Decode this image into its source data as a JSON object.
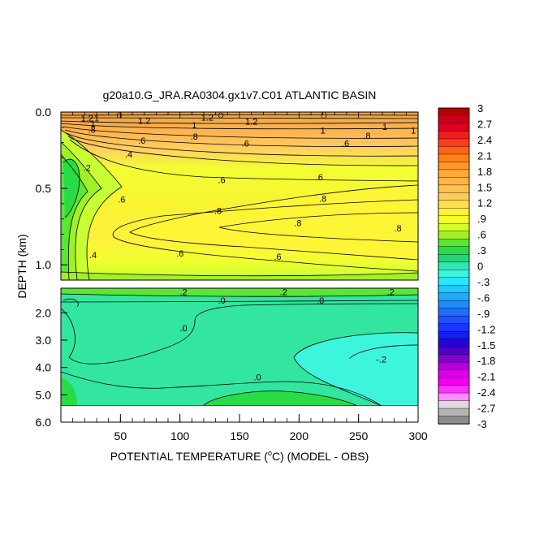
{
  "chart_data": {
    "type": "heatmap",
    "title": "g20a10.G_JRA.RA0304.gx1v7.C01 ATLANTIC BASIN",
    "xlabel": "POTENTIAL TEMPERATURE (",
    "xlabel_unit": "o",
    "xlabel_tail": "C) (MODEL - OBS)",
    "ylabel": "DEPTH (km)",
    "xlim": [
      0,
      300
    ],
    "upper_panel": {
      "ylim": [
        0.0,
        1.1
      ],
      "yticks": [
        "0.0",
        "0.5",
        "1.0"
      ]
    },
    "lower_panel": {
      "ylim": [
        1.1,
        6.0
      ],
      "yticks": [
        "2.0",
        "3.0",
        "4.0",
        "5.0",
        "6.0"
      ]
    },
    "xticks": [
      "50",
      "100",
      "150",
      "200",
      "250",
      "300"
    ],
    "colorbar": {
      "labels": [
        "3",
        "2.7",
        "2.4",
        "2.1",
        "1.8",
        "1.5",
        "1.2",
        ".9",
        ".6",
        ".3",
        "0",
        "-.3",
        "-.6",
        "-.9",
        "-1.2",
        "-1.5",
        "-1.8",
        "-2.1",
        "-2.4",
        "-2.7",
        "-3"
      ],
      "colors": [
        "#b40000",
        "#c8001e",
        "#e1001e",
        "#f01e1e",
        "#ff3c1e",
        "#ff6414",
        "#ff8214",
        "#ff9628",
        "#ffa83c",
        "#ffb446",
        "#ffc050",
        "#ffcc5a",
        "#ffe050",
        "#fff03c",
        "#f5ff28",
        "#d2ff28",
        "#a0f028",
        "#5ae632",
        "#28dc46",
        "#28d278",
        "#32e6b4",
        "#3cf5dc",
        "#28e6ff",
        "#1ec8ff",
        "#1eaaff",
        "#1e8cff",
        "#1e6eff",
        "#1e50ff",
        "#1e32ff",
        "#141ef0",
        "#2800dc",
        "#5000c8",
        "#8200d2",
        "#b400dc",
        "#dc00e6",
        "#f000f0",
        "#ff32ff",
        "#ff8cff",
        "#dcdcdc",
        "#b4b4b4",
        "#8c8c8c"
      ]
    },
    "contour_labels_upper": [
      {
        "t": "1.2",
        "x": 22,
        "d": 0.04
      },
      {
        "t": "1",
        "x": 30,
        "d": 0.04
      },
      {
        "t": "1.2",
        "x": 70,
        "d": 0.055
      },
      {
        "t": "1.2",
        "x": 123,
        "d": 0.035
      },
      {
        "t": "1.2",
        "x": 160,
        "d": 0.06
      },
      {
        "t": "1",
        "x": 112,
        "d": 0.085
      },
      {
        "t": "1",
        "x": 27,
        "d": 0.075
      },
      {
        "t": ".8",
        "x": 26,
        "d": 0.115
      },
      {
        "t": "1",
        "x": 272,
        "d": 0.095
      },
      {
        "t": "1",
        "x": 220,
        "d": 0.12
      },
      {
        "t": "1",
        "x": 296,
        "d": 0.12
      },
      {
        "t": ".8",
        "x": 112,
        "d": 0.16
      },
      {
        "t": ".8",
        "x": 257,
        "d": 0.155
      },
      {
        "t": ".6",
        "x": 68,
        "d": 0.185
      },
      {
        "t": ".6",
        "x": 155,
        "d": 0.205
      },
      {
        "t": ".6",
        "x": 239,
        "d": 0.205
      },
      {
        "t": ".4",
        "x": 57,
        "d": 0.275
      },
      {
        "t": ".2",
        "x": 22,
        "d": 0.365
      },
      {
        "t": ".6",
        "x": 135,
        "d": 0.445
      },
      {
        "t": ".6",
        "x": 217,
        "d": 0.425
      },
      {
        "t": ".6",
        "x": 51,
        "d": 0.57
      },
      {
        "t": ".8",
        "x": 220,
        "d": 0.565
      },
      {
        "t": ".8",
        "x": 132,
        "d": 0.645
      },
      {
        "t": ".8",
        "x": 199,
        "d": 0.725
      },
      {
        "t": ".8",
        "x": 283,
        "d": 0.76
      },
      {
        "t": ".4",
        "x": 27,
        "d": 0.935
      },
      {
        "t": ".6",
        "x": 100,
        "d": 0.925
      },
      {
        "t": ".6",
        "x": 182,
        "d": 0.945
      }
    ],
    "contour_labels_lower": [
      {
        "t": ".2",
        "x": 103,
        "d": 1.23
      },
      {
        "t": ".2",
        "x": 187,
        "d": 1.23
      },
      {
        "t": ".2",
        "x": 277,
        "d": 1.23
      },
      {
        "t": ".0",
        "x": 135,
        "d": 1.55
      },
      {
        "t": ".0",
        "x": 218,
        "d": 1.55
      },
      {
        "t": ".0",
        "x": 103,
        "d": 2.55
      },
      {
        "t": ".0",
        "x": 165,
        "d": 4.35
      },
      {
        "t": "-.2",
        "x": 269,
        "d": 3.7
      }
    ]
  }
}
